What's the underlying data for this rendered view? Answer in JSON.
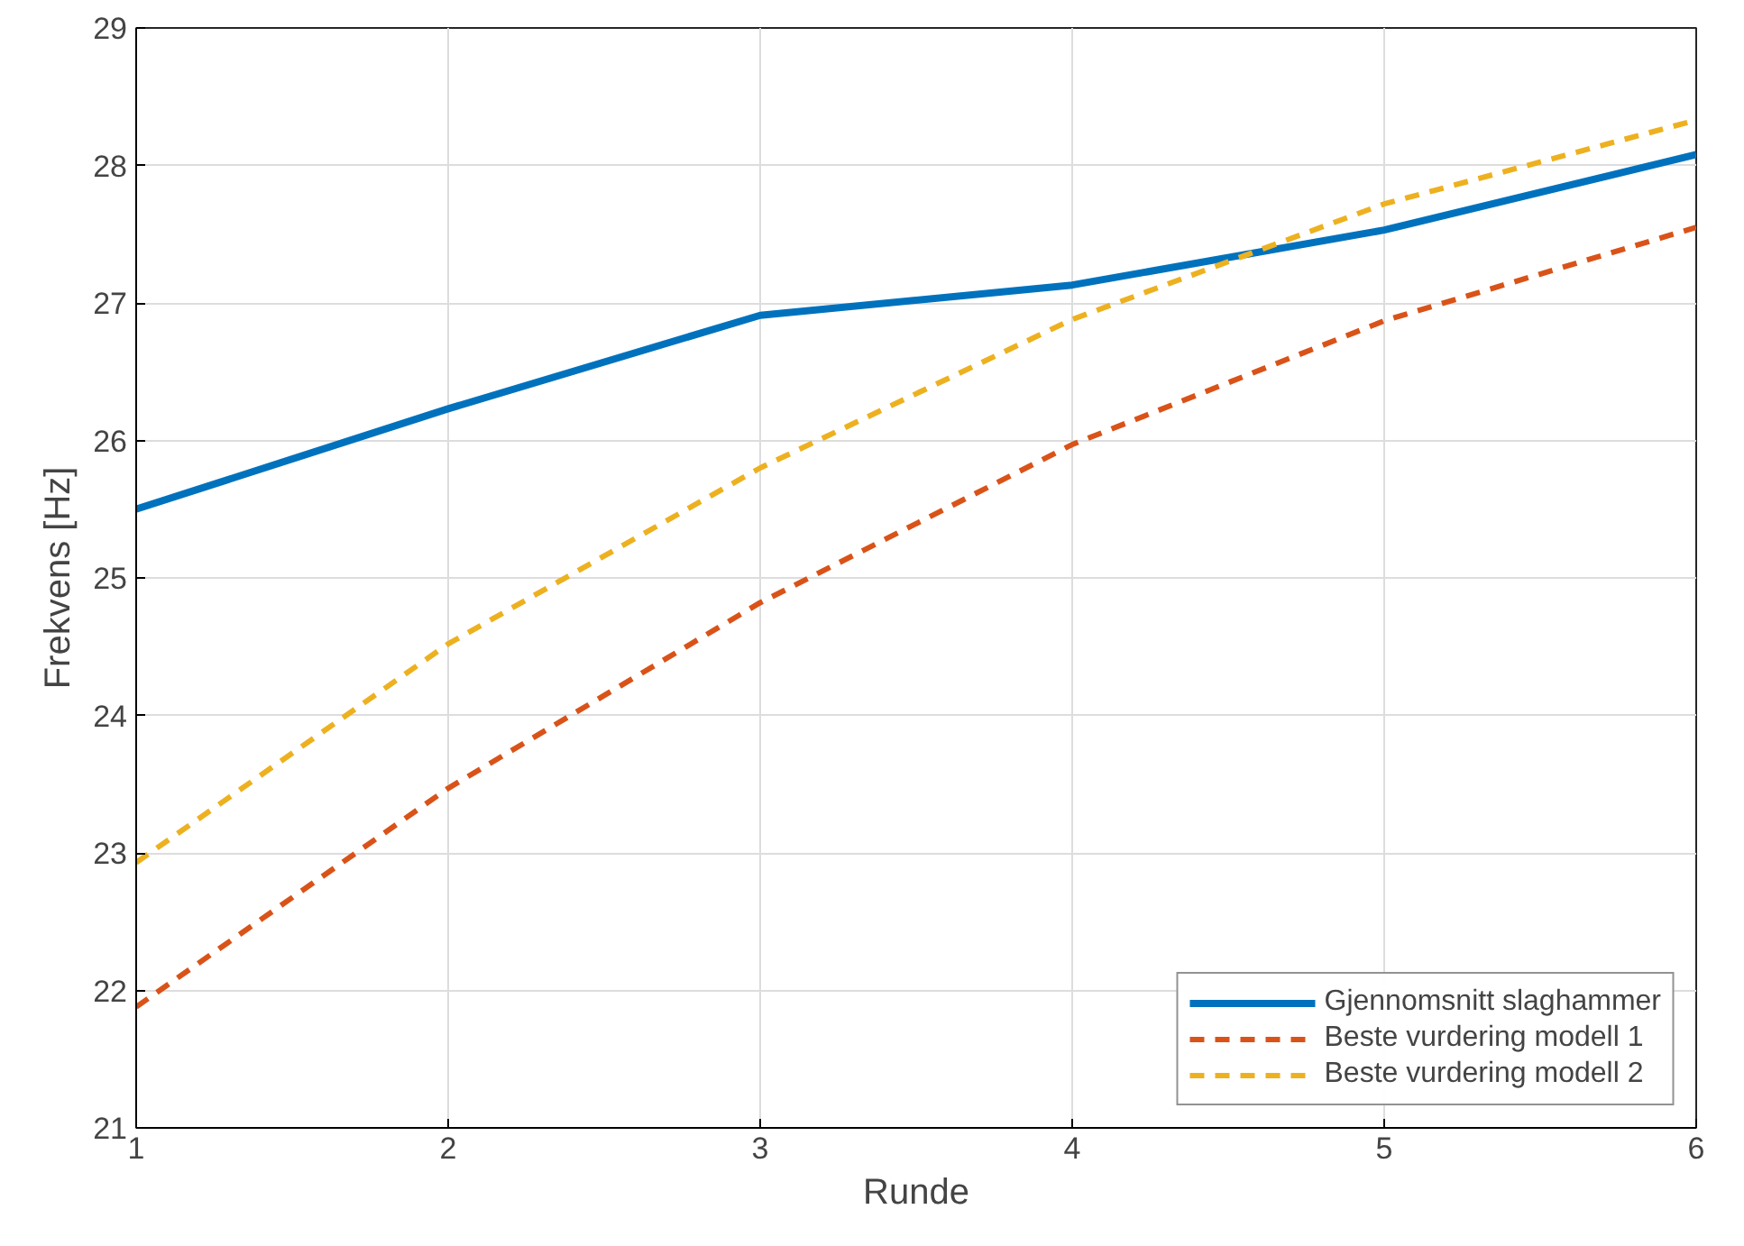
{
  "chart_data": {
    "type": "line",
    "xlabel": "Runde",
    "ylabel": "Frekvens [Hz]",
    "x": [
      1,
      2,
      3,
      4,
      5,
      6
    ],
    "series": [
      {
        "name": "Gjennomsnitt slaghammer",
        "color": "#0072bd",
        "line_style": "solid",
        "values": [
          25.5,
          26.23,
          26.91,
          27.13,
          27.53,
          28.08
        ]
      },
      {
        "name": "Beste vurdering modell 1",
        "color": "#d95319",
        "line_style": "dashed",
        "values": [
          21.88,
          23.47,
          24.82,
          25.97,
          26.87,
          27.55
        ]
      },
      {
        "name": "Beste vurdering modell 2",
        "color": "#edb120",
        "line_style": "dashed",
        "values": [
          22.93,
          24.52,
          25.8,
          26.88,
          27.72,
          28.33
        ]
      }
    ],
    "xlim": [
      1,
      6
    ],
    "ylim": [
      21,
      29
    ],
    "xticks": [
      1,
      2,
      3,
      4,
      5,
      6
    ],
    "yticks": [
      21,
      22,
      23,
      24,
      25,
      26,
      27,
      28,
      29
    ],
    "grid": true,
    "legend": "bottom right"
  }
}
